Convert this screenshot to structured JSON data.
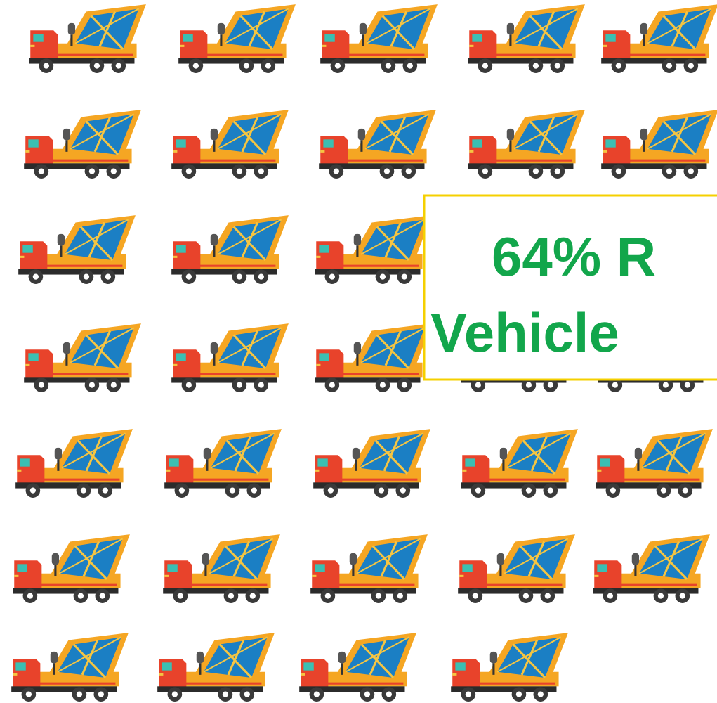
{
  "callout": {
    "lines": [
      "64% R",
      "Vehicle"
    ]
  }
}
